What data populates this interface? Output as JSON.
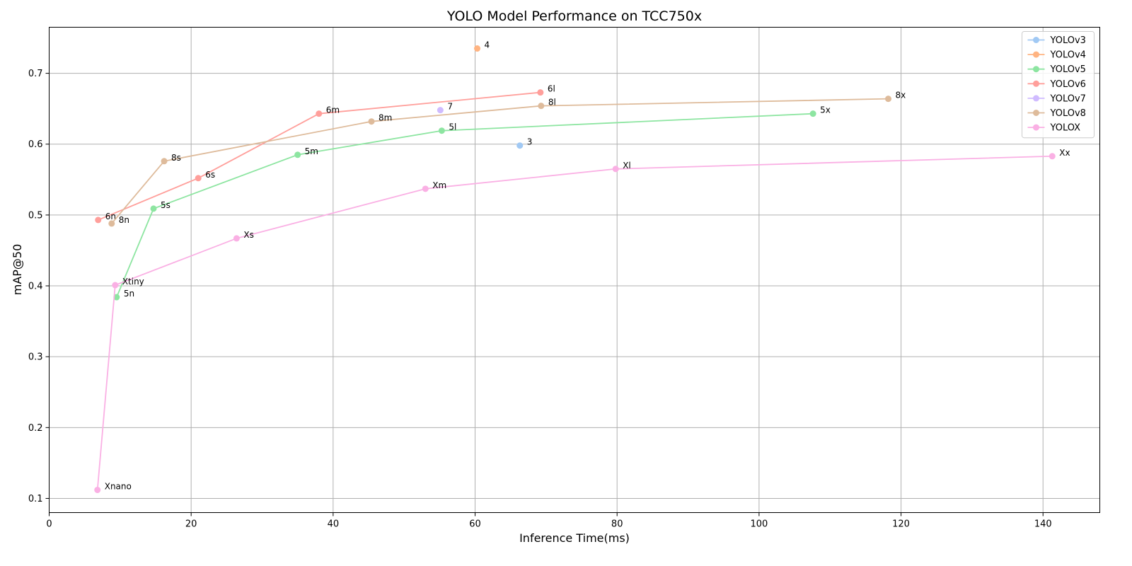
{
  "chart_data": {
    "type": "line",
    "title": "YOLO Model Performance on TCC750x",
    "xlabel": "Inference Time(ms)",
    "ylabel": "mAP@50",
    "xlim": [
      0,
      148
    ],
    "ylim": [
      0.08,
      0.765
    ],
    "xticks": [
      0,
      20,
      40,
      60,
      80,
      100,
      120,
      140
    ],
    "yticks": [
      0.1,
      0.2,
      0.3,
      0.4,
      0.5,
      0.6,
      0.7
    ],
    "grid": true,
    "legend_position": "top-right",
    "series": [
      {
        "name": "YOLOv3",
        "color": "#a1c9f4",
        "points": [
          {
            "x": 66.3,
            "y": 0.598,
            "label": "3"
          }
        ]
      },
      {
        "name": "YOLOv4",
        "color": "#ffb482",
        "points": [
          {
            "x": 60.3,
            "y": 0.735,
            "label": "4"
          }
        ]
      },
      {
        "name": "YOLOv5",
        "color": "#8de5a1",
        "points": [
          {
            "x": 9.5,
            "y": 0.384,
            "label": "5n"
          },
          {
            "x": 14.7,
            "y": 0.509,
            "label": "5s"
          },
          {
            "x": 35.0,
            "y": 0.585,
            "label": "5m"
          },
          {
            "x": 55.3,
            "y": 0.619,
            "label": "5l"
          },
          {
            "x": 107.6,
            "y": 0.643,
            "label": "5x"
          }
        ]
      },
      {
        "name": "YOLOv6",
        "color": "#ff9f9b",
        "points": [
          {
            "x": 6.9,
            "y": 0.493,
            "label": "6n"
          },
          {
            "x": 21.0,
            "y": 0.552,
            "label": "6s"
          },
          {
            "x": 38.0,
            "y": 0.643,
            "label": "6m"
          },
          {
            "x": 69.2,
            "y": 0.673,
            "label": "6l"
          }
        ]
      },
      {
        "name": "YOLOv7",
        "color": "#d0bbff",
        "points": [
          {
            "x": 55.1,
            "y": 0.648,
            "label": "7"
          }
        ]
      },
      {
        "name": "YOLOv8",
        "color": "#debb9b",
        "points": [
          {
            "x": 8.8,
            "y": 0.488,
            "label": "8n"
          },
          {
            "x": 16.2,
            "y": 0.576,
            "label": "8s"
          },
          {
            "x": 45.4,
            "y": 0.632,
            "label": "8m"
          },
          {
            "x": 69.3,
            "y": 0.654,
            "label": "8l"
          },
          {
            "x": 118.2,
            "y": 0.664,
            "label": "8x"
          }
        ]
      },
      {
        "name": "YOLOX",
        "color": "#fab0e4",
        "points": [
          {
            "x": 6.8,
            "y": 0.112,
            "label": "Xnano"
          },
          {
            "x": 9.3,
            "y": 0.401,
            "label": "Xtiny"
          },
          {
            "x": 26.4,
            "y": 0.467,
            "label": "Xs"
          },
          {
            "x": 53.0,
            "y": 0.537,
            "label": "Xm"
          },
          {
            "x": 79.8,
            "y": 0.565,
            "label": "Xl"
          },
          {
            "x": 141.3,
            "y": 0.583,
            "label": "Xx"
          }
        ]
      }
    ]
  }
}
